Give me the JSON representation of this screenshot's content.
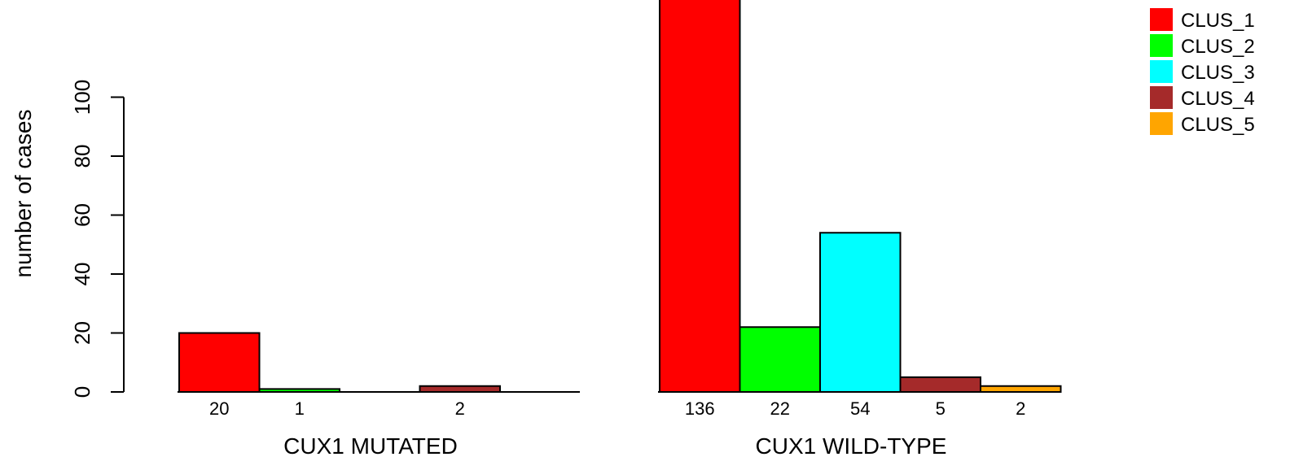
{
  "chart_data": {
    "type": "bar",
    "ylabel": "number of cases",
    "ylim": [
      0,
      136
    ],
    "yticks": [
      0,
      20,
      40,
      60,
      80,
      100
    ],
    "series_names": [
      "CLUS_1",
      "CLUS_2",
      "CLUS_3",
      "CLUS_4",
      "CLUS_5"
    ],
    "colors": [
      "#ff0000",
      "#00ff00",
      "#00ffff",
      "#a52a2a",
      "#ffa500"
    ],
    "groups": [
      {
        "label": "CUX1 MUTATED",
        "values": [
          20,
          1,
          0,
          2,
          0
        ],
        "value_labels": [
          "20",
          "1",
          "",
          "2",
          ""
        ]
      },
      {
        "label": "CUX1 WILD-TYPE",
        "values": [
          136,
          22,
          54,
          5,
          2
        ],
        "value_labels": [
          "136",
          "22",
          "54",
          "5",
          "2"
        ]
      }
    ],
    "legend_position": "top-right"
  }
}
